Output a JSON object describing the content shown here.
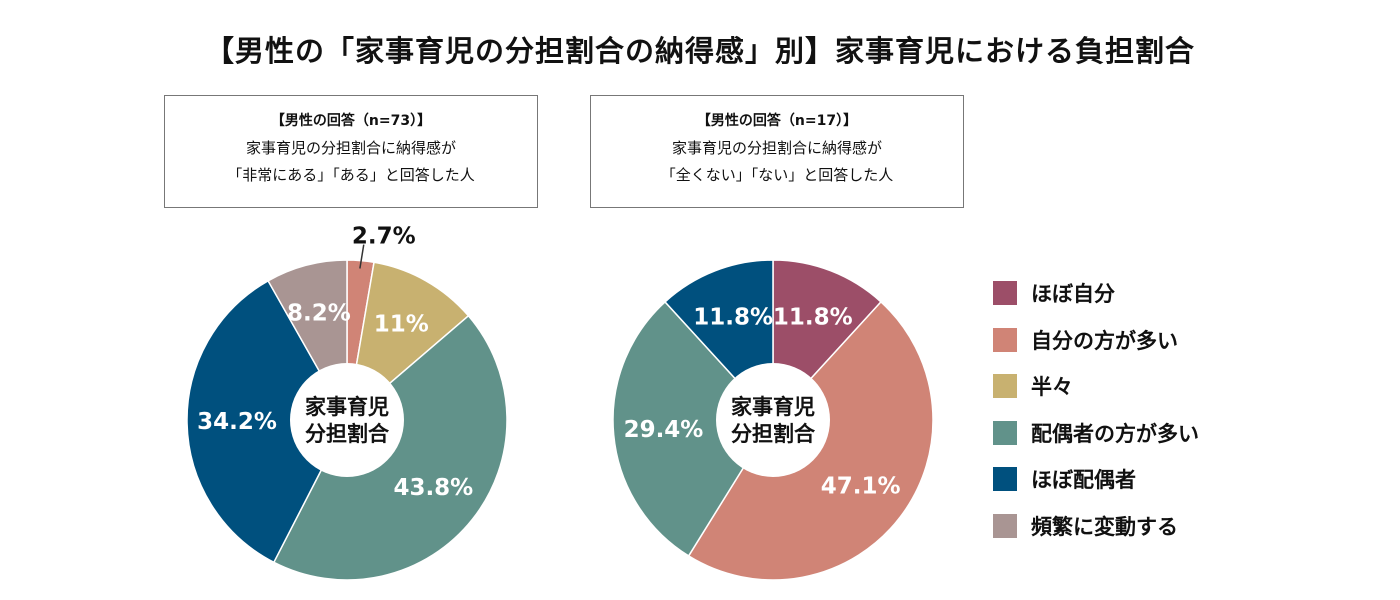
{
  "title": "【男性の「家事育児の分担割合の納得感」別】家事育児における負担割合",
  "chart_data": [
    {
      "type": "pie",
      "subtype": "donut",
      "header": "【男性の回答（n=73）】",
      "caption_lines": [
        "家事育児の分担割合に納得感が",
        "「非常にある」「ある」と回答した人"
      ],
      "center_label": [
        "家事育児",
        "分担割合"
      ],
      "categories": [
        "ほぼ自分",
        "自分の方が多い",
        "半々",
        "配偶者の方が多い",
        "ほぼ配偶者",
        "頻繁に変動する"
      ],
      "values": [
        0,
        2.7,
        11,
        43.8,
        34.2,
        8.2
      ],
      "labels": [
        "",
        "2.7%",
        "11%",
        "43.8%",
        "34.2%",
        "8.2%"
      ]
    },
    {
      "type": "pie",
      "subtype": "donut",
      "header": "【男性の回答（n=17）】",
      "caption_lines": [
        "家事育児の分担割合に納得感が",
        "「全くない」「ない」と回答した人"
      ],
      "center_label": [
        "家事育児",
        "分担割合"
      ],
      "categories": [
        "ほぼ自分",
        "自分の方が多い",
        "半々",
        "配偶者の方が多い",
        "ほぼ配偶者",
        "頻繁に変動する"
      ],
      "values": [
        11.8,
        47.1,
        0,
        29.4,
        11.8,
        0
      ],
      "labels": [
        "11.8%",
        "47.1%",
        "",
        "29.4%",
        "11.8%",
        ""
      ]
    }
  ],
  "legend": {
    "placement": "right",
    "items": [
      "ほぼ自分",
      "自分の方が多い",
      "半々",
      "配偶者の方が多い",
      "ほぼ配偶者",
      "頻繁に変動する"
    ]
  },
  "colors": [
    "#9c4e68",
    "#d08476",
    "#c8b170",
    "#61928a",
    "#00507e",
    "#a99593"
  ]
}
